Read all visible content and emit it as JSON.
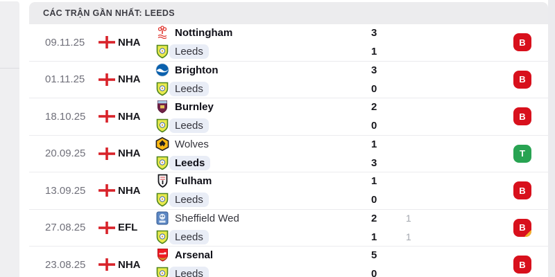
{
  "header": {
    "title": "CÁC TRẬN GẦN NHẤT: LEEDS"
  },
  "colors": {
    "win_badge": "#28a352",
    "loss_badge": "#d8101c",
    "overtime_corner": "#f2b32b",
    "leeds_pill": "#e9edf6",
    "header_bg": "#ececee"
  },
  "matches": [
    {
      "date": "09.11.25",
      "competition": "NHA",
      "flag": "england-flag-icon",
      "opponent": {
        "name": "Nottingham",
        "logo": "nottingham-logo",
        "score": "3",
        "score2": "",
        "bold": true
      },
      "leeds": {
        "name": "Leeds",
        "logo": "leeds-logo",
        "score": "1",
        "score2": "",
        "bold": false
      },
      "result": {
        "letter": "B",
        "type": "loss",
        "overtime": false
      }
    },
    {
      "date": "01.11.25",
      "competition": "NHA",
      "flag": "england-flag-icon",
      "opponent": {
        "name": "Brighton",
        "logo": "brighton-logo",
        "score": "3",
        "score2": "",
        "bold": true
      },
      "leeds": {
        "name": "Leeds",
        "logo": "leeds-logo",
        "score": "0",
        "score2": "",
        "bold": false
      },
      "result": {
        "letter": "B",
        "type": "loss",
        "overtime": false
      }
    },
    {
      "date": "18.10.25",
      "competition": "NHA",
      "flag": "england-flag-icon",
      "opponent": {
        "name": "Burnley",
        "logo": "burnley-logo",
        "score": "2",
        "score2": "",
        "bold": true
      },
      "leeds": {
        "name": "Leeds",
        "logo": "leeds-logo",
        "score": "0",
        "score2": "",
        "bold": false
      },
      "result": {
        "letter": "B",
        "type": "loss",
        "overtime": false
      }
    },
    {
      "date": "20.09.25",
      "competition": "NHA",
      "flag": "england-flag-icon",
      "opponent": {
        "name": "Wolves",
        "logo": "wolves-logo",
        "score": "1",
        "score2": "",
        "bold": false
      },
      "leeds": {
        "name": "Leeds",
        "logo": "leeds-logo",
        "score": "3",
        "score2": "",
        "bold": true
      },
      "result": {
        "letter": "T",
        "type": "win",
        "overtime": false
      }
    },
    {
      "date": "13.09.25",
      "competition": "NHA",
      "flag": "england-flag-icon",
      "opponent": {
        "name": "Fulham",
        "logo": "fulham-logo",
        "score": "1",
        "score2": "",
        "bold": true
      },
      "leeds": {
        "name": "Leeds",
        "logo": "leeds-logo",
        "score": "0",
        "score2": "",
        "bold": false
      },
      "result": {
        "letter": "B",
        "type": "loss",
        "overtime": false
      }
    },
    {
      "date": "27.08.25",
      "competition": "EFL",
      "flag": "england-flag-icon",
      "opponent": {
        "name": "Sheffield Wed",
        "logo": "sheffwed-logo",
        "score": "2",
        "score2": "1",
        "bold": false
      },
      "leeds": {
        "name": "Leeds",
        "logo": "leeds-logo",
        "score": "1",
        "score2": "1",
        "bold": false
      },
      "result": {
        "letter": "B",
        "type": "loss",
        "overtime": true
      }
    },
    {
      "date": "23.08.25",
      "competition": "NHA",
      "flag": "england-flag-icon",
      "opponent": {
        "name": "Arsenal",
        "logo": "arsenal-logo",
        "score": "5",
        "score2": "",
        "bold": true
      },
      "leeds": {
        "name": "Leeds",
        "logo": "leeds-logo",
        "score": "0",
        "score2": "",
        "bold": false
      },
      "result": {
        "letter": "B",
        "type": "loss",
        "overtime": false
      }
    }
  ]
}
